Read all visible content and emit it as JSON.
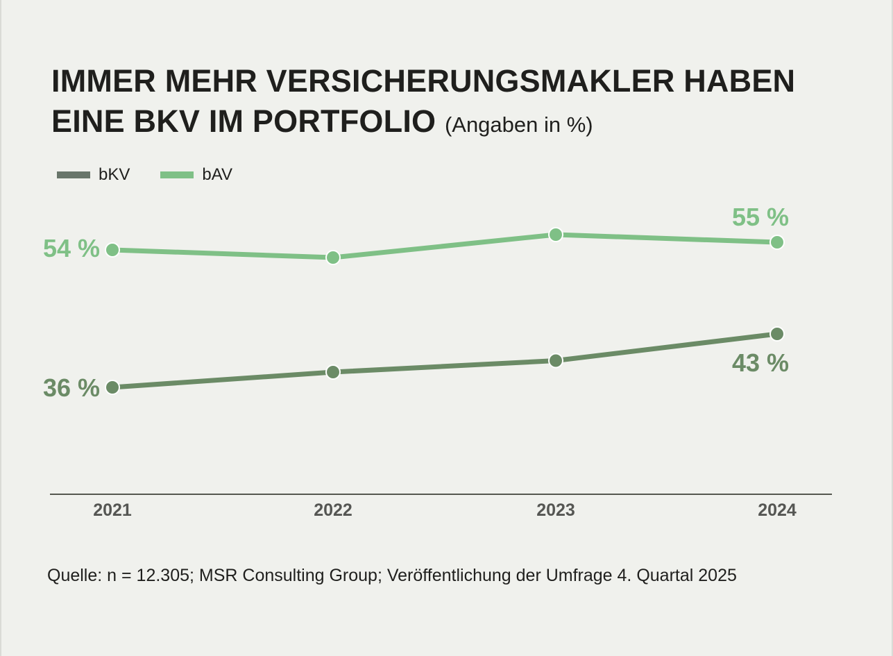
{
  "title": {
    "main_line1": "IMMER MEHR VERSICHERUNGSMAKLER HABEN",
    "main_line2": "EINE BKV IM PORTFOLIO",
    "subtitle": "(Angaben in %)"
  },
  "legend": [
    {
      "label": "bKV",
      "color": "#68756a"
    },
    {
      "label": "bAV",
      "color": "#7fc086"
    }
  ],
  "source": "Quelle: n = 12.305; MSR Consulting Group; Veröffentlichung der Umfrage 4. Quartal 2025",
  "chart_data": {
    "type": "line",
    "title": "IMMER MEHR VERSICHERUNGSMAKLER HABEN EINE BKV IM PORTFOLIO",
    "subtitle": "(Angaben in %)",
    "categories": [
      "2021",
      "2022",
      "2023",
      "2024"
    ],
    "ylim": [
      30,
      60
    ],
    "grid": false,
    "legend_position": "top-left",
    "series": [
      {
        "name": "bAV",
        "color": "#7fc086",
        "values": [
          54,
          53,
          56,
          55
        ],
        "labels": [
          "54 %",
          "",
          "",
          "55 %"
        ]
      },
      {
        "name": "bKV",
        "color": "#6b8b66",
        "values": [
          36,
          38,
          39.5,
          43
        ],
        "labels": [
          "36 %",
          "",
          "",
          "43 %"
        ]
      }
    ]
  }
}
